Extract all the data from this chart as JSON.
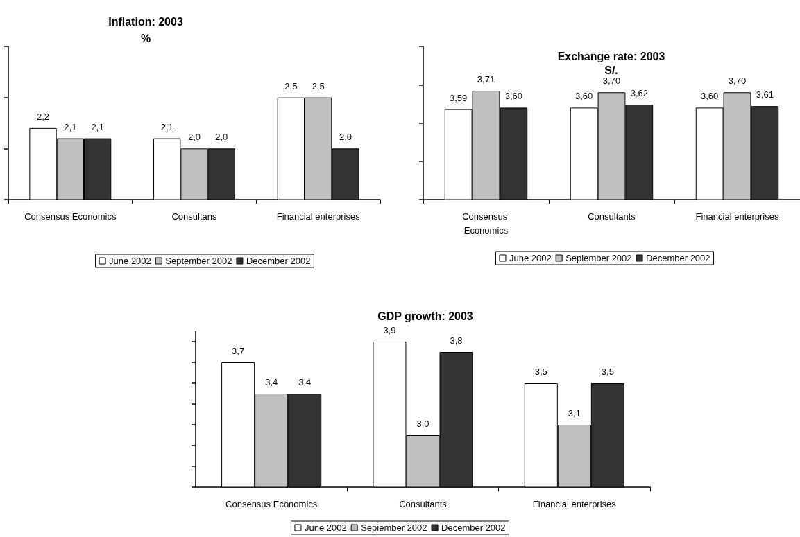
{
  "chart_data": [
    {
      "type": "bar",
      "title": "Inflation: 2003",
      "subtitle": "%",
      "categories": [
        "Consensus Economics",
        "Consultans",
        "Financial enterprises"
      ],
      "ylim": [
        1.5,
        3.0
      ],
      "yticks": [
        {
          "value": 1.5,
          "label": null
        },
        {
          "value": 2.0,
          "label": null
        },
        {
          "value": 2.5,
          "label": null
        },
        {
          "value": 3.0,
          "label": null
        }
      ],
      "tick_labels": "x",
      "grid": false,
      "legend": "bottom",
      "series": [
        {
          "name": "June 2002",
          "color": "#ffffff",
          "values": [
            2.2,
            2.1,
            2.5
          ],
          "value_labels": [
            "2,2",
            "2,1",
            "2,5"
          ]
        },
        {
          "name": "September 2002",
          "color": "#c0c0c0",
          "values": [
            2.1,
            2.0,
            2.5
          ],
          "value_labels": [
            "2,1",
            "2,0",
            "2,5"
          ]
        },
        {
          "name": "December 2002",
          "color": "#333333",
          "values": [
            2.1,
            2.0,
            2.0
          ],
          "value_labels": [
            "2,1",
            "2,0",
            "2,0"
          ]
        }
      ]
    },
    {
      "type": "bar",
      "title": "Exchange rate: 2003",
      "subtitle": "S/.",
      "categories": [
        "Consensus Economics",
        "Consultants",
        "Financial enterprises"
      ],
      "ylim": [
        3.0,
        4.0
      ],
      "yticks": [
        {
          "value": 3.0,
          "label": null
        },
        {
          "value": 3.25,
          "label": null
        },
        {
          "value": 3.5,
          "label": null
        },
        {
          "value": 3.75,
          "label": null
        },
        {
          "value": 4.0,
          "label": null
        }
      ],
      "tick_labels": "x",
      "grid": false,
      "legend": "bottom",
      "series": [
        {
          "name": "June 2002",
          "color": "#ffffff",
          "values": [
            3.59,
            3.6,
            3.6
          ],
          "value_labels": [
            "3,59",
            "3,60",
            "3,60"
          ]
        },
        {
          "name": "Sepiember 2002",
          "color": "#c0c0c0",
          "values": [
            3.71,
            3.7,
            3.7
          ],
          "value_labels": [
            "3,71",
            "3,70",
            "3,70"
          ]
        },
        {
          "name": "December 2002",
          "color": "#333333",
          "values": [
            3.6,
            3.62,
            3.61
          ],
          "value_labels": [
            "3,60",
            "3,62",
            "3,61"
          ]
        }
      ]
    },
    {
      "type": "bar",
      "title": "GDP growth: 2003",
      "categories": [
        "Consensus Economics",
        "Consultants",
        "Financial enterprises"
      ],
      "ylim": [
        2.5,
        4.0
      ],
      "yticks": [
        {
          "value": 2.5,
          "label": null
        },
        {
          "value": 2.7,
          "label": null
        },
        {
          "value": 2.9,
          "label": null
        },
        {
          "value": 3.1,
          "label": null
        },
        {
          "value": 3.3,
          "label": null
        },
        {
          "value": 3.5,
          "label": null
        },
        {
          "value": 3.7,
          "label": null
        },
        {
          "value": 3.9,
          "label": null
        }
      ],
      "tick_labels": "x",
      "grid": false,
      "legend": "bottom",
      "series": [
        {
          "name": "June 2002",
          "color": "#ffffff",
          "values": [
            3.7,
            3.9,
            3.5
          ],
          "value_labels": [
            "3,7",
            "3,9",
            "3,5"
          ]
        },
        {
          "name": "Sepiember 2002",
          "color": "#c0c0c0",
          "values": [
            3.4,
            3.0,
            3.1
          ],
          "value_labels": [
            "3,4",
            "3,0",
            "3,1"
          ]
        },
        {
          "name": "December 2002",
          "color": "#333333",
          "values": [
            3.4,
            3.8,
            3.5
          ],
          "value_labels": [
            "3,4",
            "3,8",
            "3,5"
          ]
        }
      ]
    }
  ]
}
